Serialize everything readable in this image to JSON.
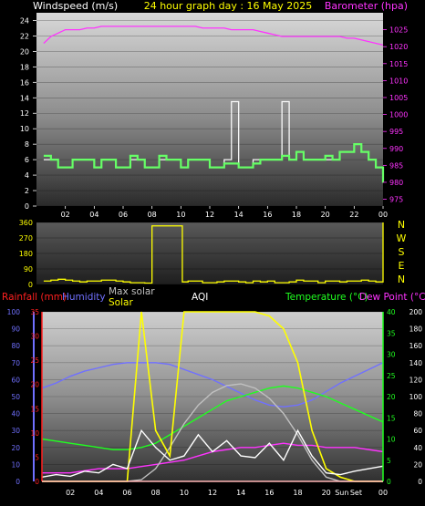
{
  "header": {
    "left_label": "Windspeed (m/s)",
    "center_label": "24 hour graph day : 16 May 2025",
    "right_label": "Barometer (hpa)"
  },
  "colors": {
    "background": "#000000",
    "windspeed": "#ffffff",
    "wind_avg": "#66ff66",
    "barometer": "#ff33ff",
    "title": "#ffff00",
    "direction": "#ffff00",
    "rainfall": "#ff2020",
    "humidity": "#7070ff",
    "max_solar": "#c0c0c0",
    "solar": "#ffff00",
    "aqi": "#ffffff",
    "temperature": "#20ff20",
    "dewpoint": "#ff33ff",
    "uv": "#ffffff"
  },
  "x_ticks": [
    "02",
    "04",
    "06",
    "08",
    "10",
    "12",
    "14",
    "16",
    "18",
    "20",
    "22",
    "00"
  ],
  "bottom_x_ticks": [
    "02",
    "04",
    "06",
    "08",
    "10",
    "12",
    "14",
    "16",
    "18",
    "20",
    "Sun",
    "Set",
    "00"
  ],
  "direction_letters": [
    "N",
    "W",
    "S",
    "E",
    "N"
  ],
  "bottom_legend": {
    "rainfall": "Rainfall (mm)",
    "humidity": "Humidity",
    "max_solar": "Max solar",
    "solar": "Solar",
    "aqi": "AQI",
    "temperature": "Temperature (°C)",
    "dewpoint": "Dew Point (°C)"
  },
  "chart_data": [
    {
      "type": "line",
      "title": "24 hour graph day : 16 May 2025",
      "ylabel": "Windspeed (m/s)",
      "y2label": "Barometer (hpa)",
      "ylim": [
        0,
        25
      ],
      "y2lim": [
        973,
        1030
      ],
      "x_hours": [
        0.5,
        1,
        1.5,
        2,
        2.5,
        3,
        3.5,
        4,
        4.5,
        5,
        5.5,
        6,
        6.5,
        7,
        7.5,
        8,
        8.5,
        9,
        9.5,
        10,
        10.5,
        11,
        11.5,
        12,
        12.5,
        13,
        13.5,
        14,
        14.5,
        15,
        15.5,
        16,
        16.5,
        17,
        17.5,
        18,
        18.5,
        19,
        19.5,
        20,
        20.5,
        21,
        21.5,
        22,
        22.5,
        23,
        23.5,
        24
      ],
      "series": [
        {
          "name": "Windspeed",
          "color": "#ffffff",
          "axis": "left",
          "values": [
            6,
            6,
            5,
            5,
            6,
            6,
            6,
            5,
            6,
            6,
            5,
            5,
            6,
            6,
            5,
            5,
            6,
            6,
            6,
            5,
            6,
            6,
            6,
            5,
            5,
            6,
            13.5,
            5,
            5,
            6,
            6,
            6,
            6,
            13.5,
            6,
            7,
            6,
            6,
            6,
            6,
            6,
            7,
            7,
            8,
            7,
            6,
            5,
            3
          ]
        },
        {
          "name": "Wind avg",
          "color": "#66ff66",
          "axis": "left",
          "values": [
            6.5,
            6,
            5,
            5,
            6,
            6,
            6,
            5,
            6,
            6,
            5,
            5,
            6.5,
            6,
            5,
            5,
            6.5,
            6,
            6,
            5,
            6,
            6,
            6,
            5,
            5,
            5.5,
            5.5,
            5,
            5,
            5.5,
            6,
            6,
            6,
            6.5,
            6,
            7,
            6,
            6,
            6,
            6.5,
            6,
            7,
            7,
            8,
            7,
            6,
            5,
            3
          ]
        },
        {
          "name": "Barometer",
          "color": "#ff33ff",
          "axis": "right",
          "values": [
            1021,
            1023,
            1024,
            1025,
            1025,
            1025,
            1025.5,
            1025.5,
            1026,
            1026,
            1026,
            1026,
            1026,
            1026,
            1026,
            1026,
            1026,
            1026,
            1026,
            1026,
            1026,
            1026,
            1025.5,
            1025.5,
            1025.5,
            1025.5,
            1025,
            1025,
            1025,
            1025,
            1024.5,
            1024,
            1023.5,
            1023,
            1023,
            1023,
            1023,
            1023,
            1023,
            1023,
            1023,
            1023,
            1022.5,
            1022.5,
            1022,
            1021.5,
            1021,
            1020.5
          ]
        }
      ],
      "y_ticks": [
        0,
        2,
        4,
        6,
        8,
        10,
        12,
        14,
        16,
        18,
        20,
        22,
        24
      ],
      "y2_ticks": [
        975,
        980,
        985,
        990,
        995,
        1000,
        1005,
        1010,
        1015,
        1020,
        1025
      ]
    },
    {
      "type": "line",
      "ylabel": "Wind direction",
      "ylim": [
        0,
        360
      ],
      "y_ticks": [
        0,
        90,
        180,
        270,
        360
      ],
      "x_hours": [
        0.5,
        1,
        1.5,
        2,
        2.5,
        3,
        3.5,
        4,
        4.5,
        5,
        5.5,
        6,
        6.5,
        7,
        7.5,
        7.9,
        8,
        8.5,
        9,
        9.5,
        10,
        10.1,
        10.5,
        11,
        11.5,
        12,
        12.5,
        13,
        13.5,
        14,
        14.5,
        15,
        15.5,
        16,
        16.5,
        17,
        17.5,
        18,
        18.5,
        19,
        19.5,
        20,
        20.5,
        21,
        21.5,
        22,
        22.5,
        23,
        23.5,
        24
      ],
      "series": [
        {
          "name": "Direction",
          "color": "#ffff00",
          "values": [
            20,
            25,
            30,
            25,
            20,
            15,
            20,
            20,
            25,
            25,
            20,
            15,
            10,
            10,
            8,
            8,
            340,
            340,
            340,
            340,
            340,
            15,
            20,
            20,
            10,
            10,
            15,
            20,
            20,
            15,
            10,
            20,
            15,
            20,
            10,
            10,
            15,
            25,
            20,
            20,
            10,
            20,
            20,
            15,
            20,
            20,
            25,
            20,
            15,
            360
          ]
        }
      ]
    },
    {
      "type": "line",
      "ylabel": "Rainfall (mm) / Humidity",
      "ylim": [
        0,
        100
      ],
      "y_ticks": [
        0,
        10,
        20,
        30,
        40,
        50,
        60,
        70,
        80,
        90,
        100
      ],
      "rain_ticks": [
        0,
        5,
        10,
        15,
        20,
        25,
        30,
        35
      ],
      "temp_ticks": [
        0,
        5,
        10,
        15,
        20,
        25,
        30,
        35,
        40
      ],
      "aqi_ticks": [
        0,
        20,
        40,
        60,
        80,
        100,
        120,
        140,
        160,
        180,
        200
      ],
      "x_hours": [
        0,
        1,
        2,
        3,
        4,
        5,
        6,
        7,
        8,
        9,
        10,
        11,
        12,
        13,
        14,
        15,
        16,
        17,
        18,
        19,
        20,
        21,
        22,
        23,
        24
      ],
      "series": [
        {
          "name": "Humidity",
          "color": "#7070ff",
          "axis": "humidity",
          "values": [
            55,
            58,
            62,
            65,
            67,
            69,
            70,
            70,
            70,
            69,
            66,
            63,
            60,
            56,
            52,
            48,
            45,
            44,
            45,
            48,
            53,
            58,
            62,
            66,
            70
          ]
        },
        {
          "name": "Temperature",
          "color": "#20ff20",
          "axis": "temp",
          "values": [
            10,
            9.5,
            9,
            8.5,
            8,
            7.5,
            7.5,
            8,
            9,
            11,
            13,
            15,
            17,
            19,
            20,
            21,
            22,
            22.5,
            22,
            21,
            20,
            18.5,
            17,
            15.5,
            14
          ]
        },
        {
          "name": "Dew Point",
          "color": "#ff33ff",
          "axis": "temp",
          "values": [
            2,
            2,
            2,
            2.5,
            3,
            3,
            3,
            3.5,
            4,
            4.5,
            5,
            6,
            7,
            7.5,
            8,
            8,
            8.5,
            9,
            8.5,
            8.5,
            8,
            8,
            8,
            7.5,
            7
          ]
        },
        {
          "name": "Max solar",
          "color": "#c0c0c0",
          "axis": "aqi",
          "values": [
            0,
            0,
            0,
            0,
            0,
            0,
            0,
            2,
            15,
            40,
            68,
            90,
            105,
            113,
            115,
            110,
            98,
            80,
            55,
            25,
            5,
            0,
            0,
            0,
            0
          ]
        },
        {
          "name": "Solar",
          "color": "#ffff00",
          "axis": "aqi",
          "values": [
            0,
            0,
            0,
            0,
            0,
            0,
            0,
            200,
            60,
            30,
            200,
            200,
            200,
            200,
            200,
            200,
            195,
            180,
            140,
            60,
            15,
            5,
            0,
            0,
            0
          ]
        },
        {
          "name": "AQI",
          "color": "#ffffff",
          "axis": "aqi",
          "values": [
            5,
            8,
            6,
            12,
            10,
            20,
            15,
            60,
            40,
            25,
            30,
            55,
            35,
            48,
            30,
            28,
            45,
            25,
            60,
            30,
            10,
            8,
            12,
            15,
            18
          ]
        },
        {
          "name": "Rainfall",
          "color": "#ff2020",
          "axis": "rain",
          "values": [
            0,
            0,
            0,
            0,
            0,
            0,
            0,
            0,
            0,
            0,
            0,
            0,
            0,
            0,
            0,
            0,
            0,
            0,
            0,
            0,
            0,
            0,
            0,
            0,
            0
          ]
        }
      ]
    }
  ]
}
